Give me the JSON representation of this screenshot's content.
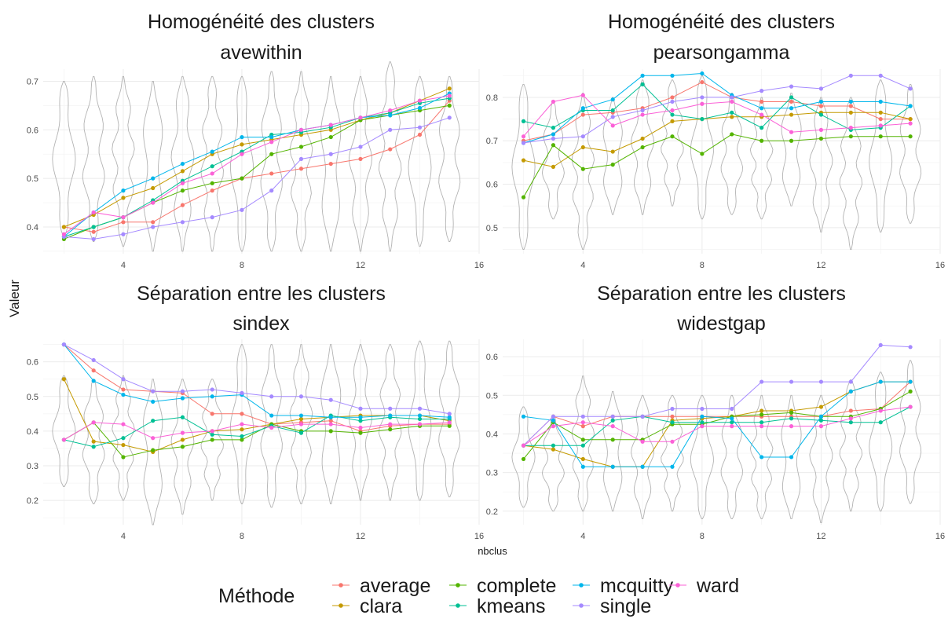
{
  "figure": {
    "y_axis_label": "Valeur",
    "x_axis_label": "nbclus"
  },
  "legend": {
    "title": "Méthode",
    "items": [
      {
        "label": "average",
        "color": "#F8766D"
      },
      {
        "label": "clara",
        "color": "#C49A00"
      },
      {
        "label": "complete",
        "color": "#53B400"
      },
      {
        "label": "kmeans",
        "color": "#00C094"
      },
      {
        "label": "mcquitty",
        "color": "#00B6EB"
      },
      {
        "label": "single",
        "color": "#A58AFF"
      },
      {
        "label": "ward",
        "color": "#FB61D7"
      }
    ]
  },
  "chart_data": [
    {
      "type": "line",
      "title": "Homogénéité des clusters",
      "subtitle": "avewithin",
      "xlim": [
        1.3,
        16
      ],
      "ylim": [
        0.345,
        0.725
      ],
      "xticks": [
        4,
        8,
        12,
        16
      ],
      "yticks": [
        0.4,
        0.5,
        0.6,
        0.7
      ],
      "x": [
        2,
        3,
        4,
        5,
        6,
        7,
        8,
        9,
        10,
        11,
        12,
        13,
        14,
        15
      ],
      "violins": [
        {
          "x": 2,
          "min": 0.38,
          "max": 0.7
        },
        {
          "x": 3,
          "min": 0.37,
          "max": 0.71
        },
        {
          "x": 4,
          "min": 0.36,
          "max": 0.71
        },
        {
          "x": 5,
          "min": 0.35,
          "max": 0.7
        },
        {
          "x": 6,
          "min": 0.35,
          "max": 0.71
        },
        {
          "x": 7,
          "min": 0.35,
          "max": 0.71
        },
        {
          "x": 8,
          "min": 0.35,
          "max": 0.71
        },
        {
          "x": 9,
          "min": 0.35,
          "max": 0.72
        },
        {
          "x": 10,
          "min": 0.35,
          "max": 0.72
        },
        {
          "x": 11,
          "min": 0.35,
          "max": 0.71
        },
        {
          "x": 12,
          "min": 0.35,
          "max": 0.71
        },
        {
          "x": 13,
          "min": 0.35,
          "max": 0.74
        },
        {
          "x": 14,
          "min": 0.36,
          "max": 0.71
        },
        {
          "x": 15,
          "min": 0.37,
          "max": 0.71
        }
      ],
      "series": [
        {
          "name": "average",
          "values": [
            0.4,
            0.39,
            0.41,
            0.41,
            0.445,
            0.475,
            0.5,
            0.51,
            0.52,
            0.53,
            0.54,
            0.56,
            0.59,
            0.66
          ]
        },
        {
          "name": "clara",
          "values": [
            0.4,
            0.425,
            0.46,
            0.48,
            0.515,
            0.55,
            0.57,
            0.58,
            0.59,
            0.6,
            0.62,
            0.635,
            0.66,
            0.685
          ]
        },
        {
          "name": "complete",
          "values": [
            0.375,
            0.4,
            0.42,
            0.45,
            0.475,
            0.49,
            0.5,
            0.55,
            0.565,
            0.585,
            0.62,
            0.63,
            0.64,
            0.65
          ]
        },
        {
          "name": "kmeans",
          "values": [
            0.38,
            0.4,
            0.42,
            0.455,
            0.495,
            0.525,
            0.555,
            0.59,
            0.595,
            0.605,
            0.625,
            0.635,
            0.655,
            0.665
          ]
        },
        {
          "name": "mcquitty",
          "values": [
            0.38,
            0.43,
            0.475,
            0.5,
            0.53,
            0.555,
            0.585,
            0.585,
            0.6,
            0.61,
            0.625,
            0.63,
            0.645,
            0.675
          ]
        },
        {
          "name": "single",
          "values": [
            0.38,
            0.375,
            0.385,
            0.4,
            0.41,
            0.42,
            0.435,
            0.475,
            0.54,
            0.55,
            0.565,
            0.6,
            0.605,
            0.625
          ]
        },
        {
          "name": "ward",
          "values": [
            0.385,
            0.43,
            0.42,
            0.45,
            0.49,
            0.51,
            0.55,
            0.575,
            0.6,
            0.61,
            0.625,
            0.64,
            0.66,
            0.67
          ]
        }
      ]
    },
    {
      "type": "line",
      "title": "Homogénéité des clusters",
      "subtitle": "pearsongamma",
      "xlim": [
        1.3,
        16
      ],
      "ylim": [
        0.44,
        0.865
      ],
      "xticks": [
        4,
        8,
        12,
        16
      ],
      "yticks": [
        0.5,
        0.6,
        0.7,
        0.8
      ],
      "x": [
        2,
        3,
        4,
        5,
        6,
        7,
        8,
        9,
        10,
        11,
        12,
        13,
        14,
        15
      ],
      "violins": [
        {
          "x": 2,
          "min": 0.45,
          "max": 0.83
        },
        {
          "x": 3,
          "min": 0.52,
          "max": 0.79
        },
        {
          "x": 4,
          "min": 0.45,
          "max": 0.81
        },
        {
          "x": 5,
          "min": 0.53,
          "max": 0.8
        },
        {
          "x": 6,
          "min": 0.53,
          "max": 0.84
        },
        {
          "x": 7,
          "min": 0.55,
          "max": 0.84
        },
        {
          "x": 8,
          "min": 0.52,
          "max": 0.85
        },
        {
          "x": 9,
          "min": 0.53,
          "max": 0.81
        },
        {
          "x": 10,
          "min": 0.52,
          "max": 0.8
        },
        {
          "x": 11,
          "min": 0.55,
          "max": 0.81
        },
        {
          "x": 12,
          "min": 0.49,
          "max": 0.8
        },
        {
          "x": 13,
          "min": 0.45,
          "max": 0.8
        },
        {
          "x": 14,
          "min": 0.49,
          "max": 0.84
        },
        {
          "x": 15,
          "min": 0.51,
          "max": 0.83
        }
      ],
      "series": [
        {
          "name": "average",
          "values": [
            0.7,
            0.715,
            0.76,
            0.765,
            0.775,
            0.8,
            0.835,
            0.8,
            0.79,
            0.79,
            0.78,
            0.78,
            0.75,
            0.75
          ]
        },
        {
          "name": "clara",
          "values": [
            0.655,
            0.64,
            0.685,
            0.675,
            0.705,
            0.745,
            0.75,
            0.755,
            0.755,
            0.76,
            0.765,
            0.765,
            0.765,
            0.75
          ]
        },
        {
          "name": "complete",
          "values": [
            0.57,
            0.69,
            0.635,
            0.645,
            0.685,
            0.71,
            0.67,
            0.715,
            0.7,
            0.7,
            0.705,
            0.71,
            0.71,
            0.71
          ]
        },
        {
          "name": "kmeans",
          "values": [
            0.745,
            0.73,
            0.77,
            0.77,
            0.83,
            0.76,
            0.75,
            0.765,
            0.73,
            0.8,
            0.76,
            0.725,
            0.73,
            0.78
          ]
        },
        {
          "name": "mcquitty",
          "values": [
            0.695,
            0.715,
            0.775,
            0.795,
            0.85,
            0.85,
            0.855,
            0.805,
            0.775,
            0.775,
            0.79,
            0.79,
            0.79,
            0.78
          ]
        },
        {
          "name": "single",
          "values": [
            0.695,
            0.705,
            0.71,
            0.755,
            0.77,
            0.79,
            0.8,
            0.8,
            0.815,
            0.825,
            0.82,
            0.85,
            0.85,
            0.82
          ]
        },
        {
          "name": "ward",
          "values": [
            0.71,
            0.79,
            0.805,
            0.735,
            0.76,
            0.77,
            0.785,
            0.79,
            0.76,
            0.72,
            0.725,
            0.73,
            0.735,
            0.74
          ]
        }
      ]
    },
    {
      "type": "line",
      "title": "Séparation entre les clusters",
      "subtitle": "sindex",
      "xlim": [
        1.3,
        16
      ],
      "ylim": [
        0.13,
        0.665
      ],
      "xticks": [
        4,
        8,
        12,
        16
      ],
      "yticks": [
        0.2,
        0.3,
        0.4,
        0.5,
        0.6
      ],
      "x": [
        2,
        3,
        4,
        5,
        6,
        7,
        8,
        9,
        10,
        11,
        12,
        13,
        14,
        15
      ],
      "violins": [
        {
          "x": 2,
          "min": 0.24,
          "max": 0.56
        },
        {
          "x": 3,
          "min": 0.19,
          "max": 0.55
        },
        {
          "x": 4,
          "min": 0.2,
          "max": 0.56
        },
        {
          "x": 5,
          "min": 0.13,
          "max": 0.55
        },
        {
          "x": 6,
          "min": 0.16,
          "max": 0.55
        },
        {
          "x": 7,
          "min": 0.2,
          "max": 0.55
        },
        {
          "x": 8,
          "min": 0.19,
          "max": 0.65
        },
        {
          "x": 9,
          "min": 0.18,
          "max": 0.65
        },
        {
          "x": 10,
          "min": 0.19,
          "max": 0.65
        },
        {
          "x": 11,
          "min": 0.19,
          "max": 0.65
        },
        {
          "x": 12,
          "min": 0.2,
          "max": 0.65
        },
        {
          "x": 13,
          "min": 0.2,
          "max": 0.65
        },
        {
          "x": 14,
          "min": 0.2,
          "max": 0.66
        },
        {
          "x": 15,
          "min": 0.21,
          "max": 0.66
        }
      ],
      "series": [
        {
          "name": "average",
          "values": [
            0.65,
            0.575,
            0.52,
            0.515,
            0.51,
            0.45,
            0.45,
            0.42,
            0.425,
            0.43,
            0.4,
            0.415,
            0.42,
            0.42
          ]
        },
        {
          "name": "clara",
          "values": [
            0.55,
            0.37,
            0.36,
            0.34,
            0.375,
            0.4,
            0.405,
            0.42,
            0.435,
            0.44,
            0.445,
            0.445,
            0.445,
            0.43
          ]
        },
        {
          "name": "complete",
          "values": [
            0.375,
            0.425,
            0.325,
            0.345,
            0.355,
            0.375,
            0.375,
            0.42,
            0.4,
            0.4,
            0.395,
            0.405,
            0.415,
            0.415
          ]
        },
        {
          "name": "kmeans",
          "values": [
            0.375,
            0.355,
            0.38,
            0.43,
            0.44,
            0.39,
            0.385,
            0.415,
            0.395,
            0.445,
            0.43,
            0.44,
            0.435,
            0.435
          ]
        },
        {
          "name": "mcquitty",
          "values": [
            0.65,
            0.545,
            0.505,
            0.485,
            0.495,
            0.5,
            0.505,
            0.445,
            0.445,
            0.44,
            0.44,
            0.445,
            0.445,
            0.44
          ]
        },
        {
          "name": "single",
          "values": [
            0.65,
            0.605,
            0.55,
            0.515,
            0.515,
            0.52,
            0.51,
            0.5,
            0.5,
            0.49,
            0.465,
            0.465,
            0.465,
            0.45
          ]
        },
        {
          "name": "ward",
          "values": [
            0.375,
            0.425,
            0.42,
            0.38,
            0.395,
            0.4,
            0.42,
            0.41,
            0.42,
            0.42,
            0.41,
            0.42,
            0.42,
            0.425
          ]
        }
      ]
    },
    {
      "type": "line",
      "title": "Séparation entre les clusters",
      "subtitle": "widestgap",
      "xlim": [
        1.3,
        16
      ],
      "ylim": [
        0.165,
        0.645
      ],
      "xticks": [
        4,
        8,
        12,
        16
      ],
      "yticks": [
        0.2,
        0.3,
        0.4,
        0.5,
        0.6
      ],
      "x": [
        2,
        3,
        4,
        5,
        6,
        7,
        8,
        9,
        10,
        11,
        12,
        13,
        14,
        15
      ],
      "violins": [
        {
          "x": 2,
          "min": 0.21,
          "max": 0.47
        },
        {
          "x": 3,
          "min": 0.2,
          "max": 0.45
        },
        {
          "x": 4,
          "min": 0.2,
          "max": 0.55
        },
        {
          "x": 5,
          "min": 0.2,
          "max": 0.51
        },
        {
          "x": 6,
          "min": 0.18,
          "max": 0.5
        },
        {
          "x": 7,
          "min": 0.2,
          "max": 0.5
        },
        {
          "x": 8,
          "min": 0.18,
          "max": 0.5
        },
        {
          "x": 9,
          "min": 0.18,
          "max": 0.5
        },
        {
          "x": 10,
          "min": 0.18,
          "max": 0.5
        },
        {
          "x": 11,
          "min": 0.18,
          "max": 0.5
        },
        {
          "x": 12,
          "min": 0.17,
          "max": 0.5
        },
        {
          "x": 13,
          "min": 0.2,
          "max": 0.54
        },
        {
          "x": 14,
          "min": 0.2,
          "max": 0.56
        },
        {
          "x": 15,
          "min": 0.22,
          "max": 0.59
        }
      ],
      "series": [
        {
          "name": "average",
          "values": [
            0.37,
            0.445,
            0.42,
            0.445,
            0.445,
            0.445,
            0.445,
            0.445,
            0.445,
            0.445,
            0.445,
            0.46,
            0.465,
            0.535
          ]
        },
        {
          "name": "clara",
          "values": [
            0.37,
            0.36,
            0.335,
            0.315,
            0.315,
            0.435,
            0.44,
            0.445,
            0.46,
            0.46,
            0.47,
            0.51,
            0.535,
            0.535
          ]
        },
        {
          "name": "complete",
          "values": [
            0.335,
            0.43,
            0.385,
            0.385,
            0.385,
            0.425,
            0.425,
            0.445,
            0.45,
            0.455,
            0.445,
            0.445,
            0.465,
            0.51
          ]
        },
        {
          "name": "kmeans",
          "values": [
            0.37,
            0.37,
            0.37,
            0.435,
            0.445,
            0.43,
            0.43,
            0.43,
            0.43,
            0.44,
            0.435,
            0.43,
            0.43,
            0.47
          ]
        },
        {
          "name": "mcquitty",
          "values": [
            0.445,
            0.435,
            0.315,
            0.315,
            0.315,
            0.315,
            0.445,
            0.44,
            0.34,
            0.34,
            0.445,
            0.51,
            0.535,
            0.535
          ]
        },
        {
          "name": "single",
          "values": [
            0.37,
            0.445,
            0.445,
            0.445,
            0.445,
            0.465,
            0.465,
            0.465,
            0.535,
            0.535,
            0.535,
            0.535,
            0.63,
            0.625
          ]
        },
        {
          "name": "ward",
          "values": [
            0.37,
            0.42,
            0.43,
            0.42,
            0.38,
            0.38,
            0.42,
            0.42,
            0.42,
            0.42,
            0.42,
            0.44,
            0.46,
            0.47
          ]
        }
      ]
    }
  ]
}
